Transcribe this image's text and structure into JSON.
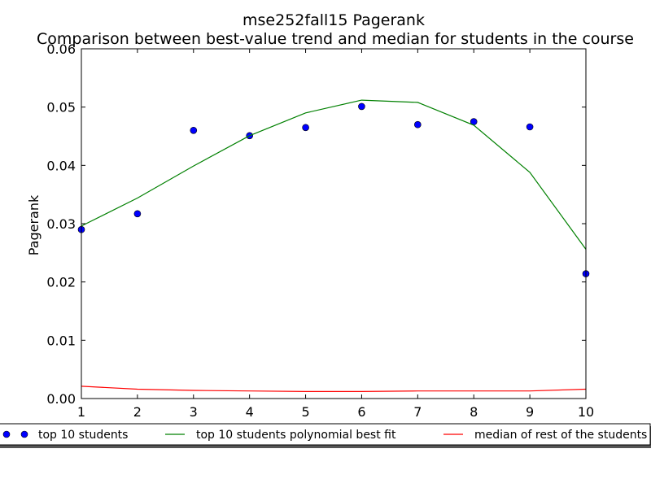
{
  "chart_data": {
    "type": "line",
    "title": "mse252fall15 Pagerank",
    "subtitle": "Comparison between best-value trend and median for students in the course",
    "xlabel": "",
    "ylabel": "Pagerank",
    "xlim": [
      1,
      10
    ],
    "ylim": [
      0.0,
      0.06
    ],
    "x_ticks": [
      "1",
      "2",
      "3",
      "4",
      "5",
      "6",
      "7",
      "8",
      "9",
      "10"
    ],
    "y_ticks": [
      "0.00",
      "0.01",
      "0.02",
      "0.03",
      "0.04",
      "0.05",
      "0.06"
    ],
    "grid": false,
    "legend_position": "bottom",
    "series": [
      {
        "name": "top 10 students",
        "kind": "scatter",
        "color": "#0000ff",
        "x": [
          1,
          2,
          3,
          4,
          5,
          6,
          7,
          8,
          9,
          10
        ],
        "y": [
          0.029,
          0.0317,
          0.046,
          0.0451,
          0.0465,
          0.0501,
          0.047,
          0.0475,
          0.0466,
          0.0214
        ]
      },
      {
        "name": "top 10 students polynomial best fit",
        "kind": "line",
        "color": "#008000",
        "x": [
          1,
          2,
          3,
          4,
          5,
          6,
          7,
          8,
          9,
          10
        ],
        "y": [
          0.0296,
          0.0344,
          0.0399,
          0.0451,
          0.049,
          0.0512,
          0.0508,
          0.0469,
          0.0388,
          0.0256
        ]
      },
      {
        "name": "median of rest of the students",
        "kind": "line",
        "color": "#ff0000",
        "x": [
          1,
          2,
          3,
          4,
          5,
          6,
          7,
          8,
          9,
          10
        ],
        "y": [
          0.0021,
          0.0016,
          0.0014,
          0.0013,
          0.0012,
          0.0012,
          0.0013,
          0.0013,
          0.0013,
          0.0016
        ]
      }
    ]
  }
}
